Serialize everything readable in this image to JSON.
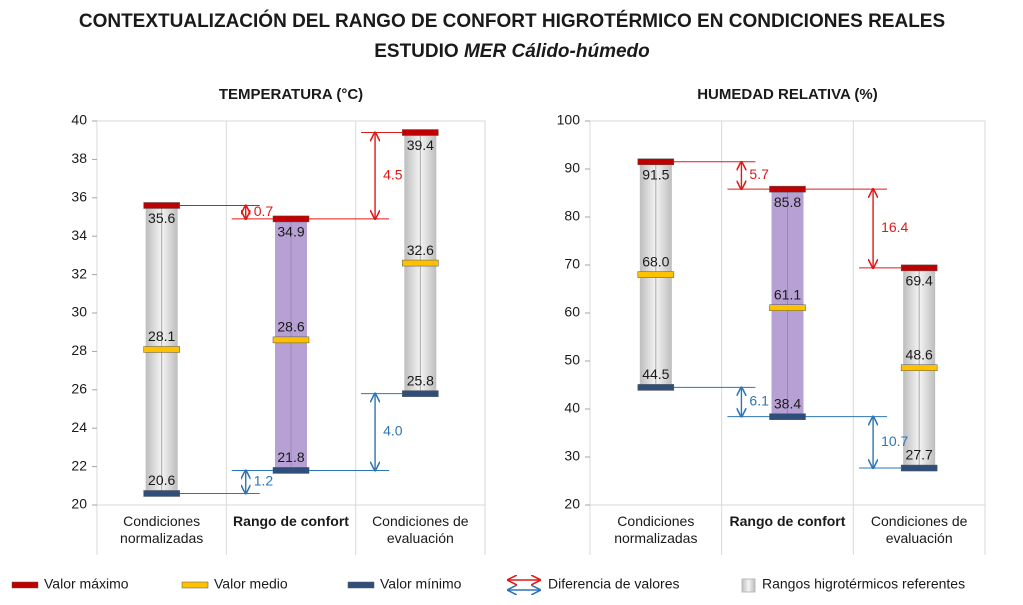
{
  "title": "CONTEXTUALIZACIÓN DEL RANGO DE CONFORT HIGROTÉRMICO EN CONDICIONES REALES",
  "subtitle": {
    "text": "ESTUDIO",
    "emphasis": "MER Cálido-húmedo"
  },
  "legend": {
    "difference": "Diferencia de valores",
    "range": "Rangos higrotérmicos referentes"
  },
  "chart_data": [
    {
      "type": "range",
      "title": "TEMPERATURA (°C)",
      "categories": [
        "Condiciones normalizadas",
        "Rango de confort",
        "Condiciones de evaluación"
      ],
      "highlight": 1,
      "range_color": "#d0d0d0",
      "highlight_color": "#b7a1d4",
      "series": [
        {
          "name": "Valor máximo",
          "color": "#c00000",
          "values": [
            35.6,
            34.9,
            39.4
          ],
          "differences": [
            0.7,
            4.5
          ],
          "difference_color": "#e01818"
        },
        {
          "name": "Valor medio",
          "color": "#ffc000",
          "values": [
            28.1,
            28.6,
            32.6
          ]
        },
        {
          "name": "Valor mínimo",
          "color": "#2f4f7a",
          "values": [
            20.6,
            21.8,
            25.8
          ],
          "differences": [
            1.2,
            4
          ],
          "difference_labels": [
            "1.2",
            "4.0"
          ],
          "difference_color": "#2e75b6"
        }
      ],
      "ylim": [
        20,
        40
      ],
      "yticks": [
        20,
        22,
        24,
        26,
        28,
        30,
        32,
        34,
        36,
        38,
        40
      ]
    },
    {
      "type": "range",
      "title": "HUMEDAD RELATIVA (%)",
      "categories": [
        "Condiciones normalizadas",
        "Rango de confort",
        "Condiciones de evaluación"
      ],
      "highlight": 1,
      "range_color": "#d0d0d0",
      "highlight_color": "#b7a1d4",
      "series": [
        {
          "name": "Valor máximo",
          "color": "#c00000",
          "values": [
            91.5,
            85.8,
            69.4
          ],
          "differences": [
            5.7,
            16.4
          ],
          "difference_color": "#e01818"
        },
        {
          "name": "Valor medio",
          "color": "#ffc000",
          "values": [
            68,
            61.1,
            48.6
          ],
          "value_labels": [
            "68.0",
            "61.1",
            "48.6"
          ]
        },
        {
          "name": "Valor mínimo",
          "color": "#2f4f7a",
          "values": [
            44.5,
            38.4,
            27.7
          ],
          "differences": [
            6.1,
            10.7
          ],
          "difference_color": "#2e75b6"
        }
      ],
      "ylim": [
        20,
        100
      ],
      "yticks": [
        20,
        30,
        40,
        50,
        60,
        70,
        80,
        90,
        100
      ]
    }
  ]
}
